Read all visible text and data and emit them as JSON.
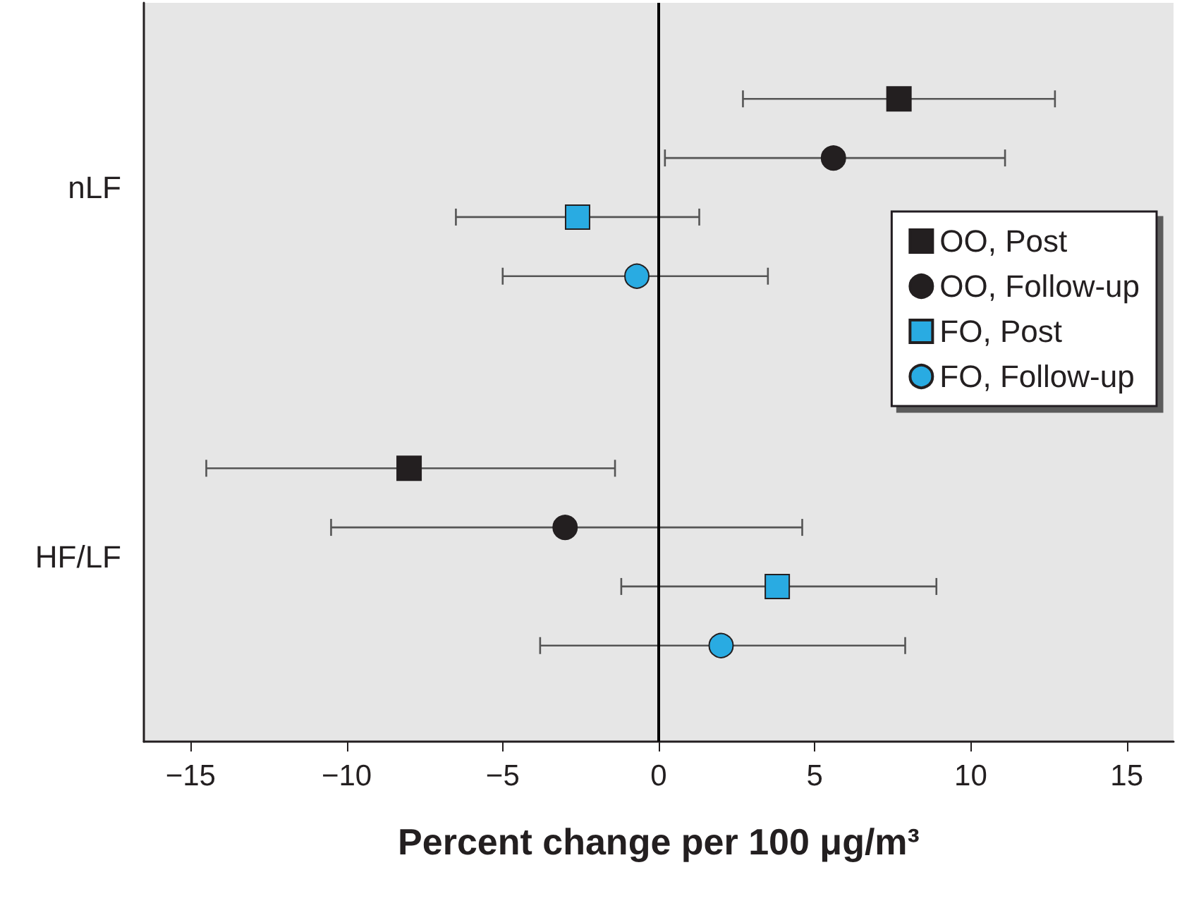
{
  "chart_data": {
    "type": "scatter",
    "orientation": "horizontal",
    "xlabel": "Percent change per 100 μg/m³",
    "categories": [
      "nLF",
      "HF/LF"
    ],
    "series": [
      {
        "name": "OO, Post",
        "color": "#231f20",
        "marker": "square",
        "values": [
          7.7,
          -8.0
        ],
        "errors": [
          [
            2.7,
            12.7
          ],
          [
            -14.5,
            -1.4
          ]
        ]
      },
      {
        "name": "OO, Follow-up",
        "color": "#231f20",
        "marker": "circle",
        "values": [
          5.6,
          -3.0
        ],
        "errors": [
          [
            0.2,
            11.1
          ],
          [
            -10.5,
            4.6
          ]
        ]
      },
      {
        "name": "FO, Post",
        "color": "#29abe2",
        "marker": "square",
        "values": [
          -2.6,
          3.8
        ],
        "errors": [
          [
            -6.5,
            1.3
          ],
          [
            -1.2,
            8.9
          ]
        ]
      },
      {
        "name": "FO, Follow-up",
        "color": "#29abe2",
        "marker": "circle",
        "values": [
          -0.7,
          2.0
        ],
        "errors": [
          [
            -5.0,
            3.5
          ],
          [
            -3.8,
            7.9
          ]
        ]
      }
    ],
    "xlim": [
      -16.5,
      16.5
    ],
    "xticks": [
      {
        "value": -15,
        "label": "−15"
      },
      {
        "value": -10,
        "label": "−10"
      },
      {
        "value": -5,
        "label": "−5"
      },
      0,
      5,
      10,
      15
    ],
    "ref_lines": [
      {
        "axis": "x",
        "value": 0,
        "color": "#000000"
      }
    ],
    "grid": false,
    "legend": "right"
  }
}
